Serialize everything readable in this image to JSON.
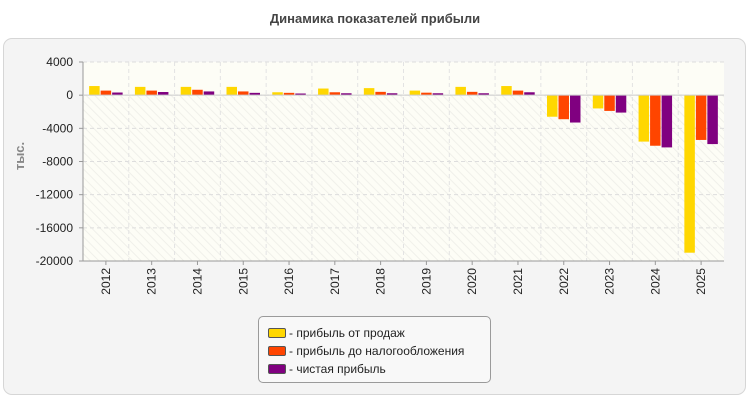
{
  "chart_data": {
    "type": "bar",
    "title": "Динамика показателей прибыли",
    "ylabel": "тыс.",
    "xlabel": "",
    "ylim": [
      -20000,
      4000
    ],
    "yticks": [
      4000,
      0,
      -4000,
      -8000,
      -12000,
      -16000,
      -20000
    ],
    "grid": true,
    "legend_position": "bottom",
    "categories": [
      "2012",
      "2013",
      "2014",
      "2015",
      "2016",
      "2017",
      "2018",
      "2019",
      "2020",
      "2021",
      "2022",
      "2023",
      "2024",
      "2025"
    ],
    "series": [
      {
        "name": "- прибыль от продаж",
        "color": "#ffd700",
        "values": [
          1100,
          1000,
          1000,
          1000,
          350,
          800,
          850,
          550,
          1000,
          1100,
          -2600,
          -1600,
          -5600,
          -19000
        ]
      },
      {
        "name": "- прибыль до налогообложения",
        "color": "#ff4500",
        "values": [
          550,
          550,
          650,
          450,
          280,
          350,
          400,
          300,
          400,
          550,
          -2900,
          -1900,
          -6100,
          -5400
        ]
      },
      {
        "name": "- чистая прибыль",
        "color": "#800080",
        "values": [
          320,
          380,
          450,
          280,
          200,
          230,
          230,
          230,
          230,
          350,
          -3300,
          -2100,
          -6300,
          -5900
        ]
      }
    ]
  }
}
